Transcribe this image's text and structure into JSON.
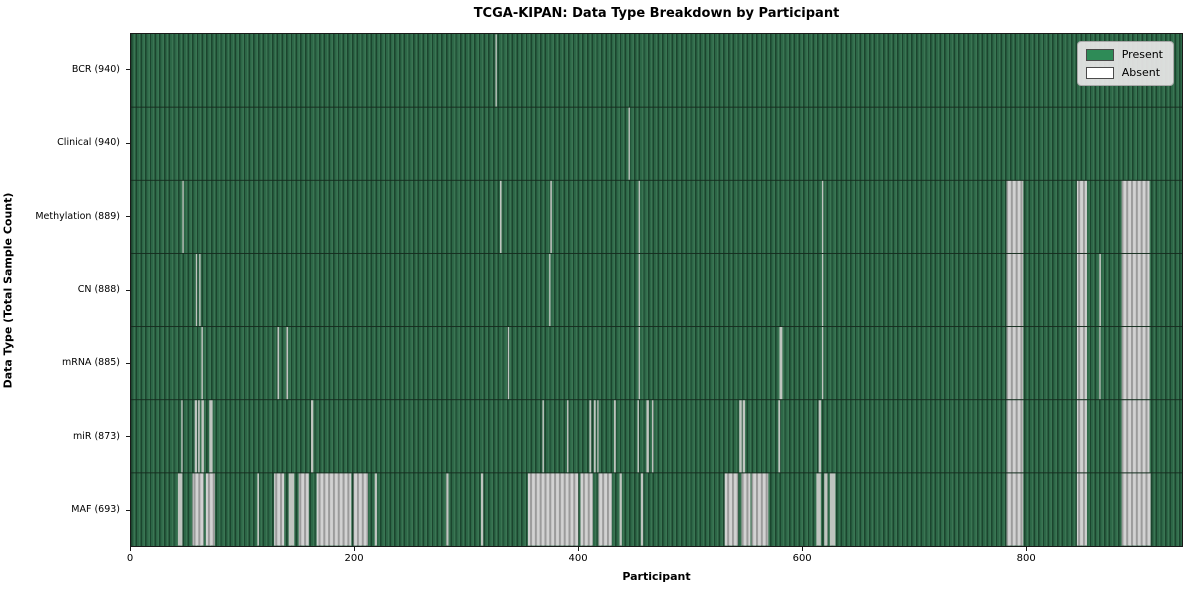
{
  "title": "TCGA-KIPAN: Data Type Breakdown by Participant",
  "axes": {
    "xlabel": "Participant",
    "ylabel": "Data Type (Total Sample Count)",
    "xticks": [
      0,
      200,
      400,
      600,
      800
    ],
    "x_range": [
      0,
      940
    ]
  },
  "legend": {
    "items": [
      {
        "label": "Present",
        "color": "#2e8b57"
      },
      {
        "label": "Absent",
        "color": "#ffffff"
      }
    ]
  },
  "colors": {
    "present": "#2e8b57",
    "present_dark": "#1b452e",
    "absent_thin": "#c0c5c0",
    "absent_block_light": "#d2d2d2",
    "absent_block_dark": "#9b9b9b",
    "row_separator": "#152a1d",
    "axis": "#1a1a1a",
    "legend_bg": "#e4e4e4"
  },
  "chart_data": {
    "type": "heatmap",
    "title": "TCGA-KIPAN: Data Type Breakdown by Participant",
    "xlabel": "Participant",
    "ylabel": "Data Type (Total Sample Count)",
    "x_range": [
      0,
      940
    ],
    "xticks": [
      0,
      200,
      400,
      600,
      800
    ],
    "legend": [
      "Present",
      "Absent"
    ],
    "cell_states": {
      "present": 1,
      "absent": 0
    },
    "rows": [
      {
        "label": "BCR (940)",
        "data_type": "BCR",
        "present_count": 940,
        "absent_ranges": [
          [
            326,
            1.2
          ]
        ]
      },
      {
        "label": "Clinical (940)",
        "data_type": "Clinical",
        "present_count": 940,
        "absent_ranges": [
          [
            445,
            1.2
          ]
        ]
      },
      {
        "label": "Methylation (889)",
        "data_type": "Methylation",
        "present_count": 889,
        "absent_ranges": [
          [
            46,
            1.2
          ],
          [
            330,
            1.4
          ],
          [
            375,
            1.4
          ],
          [
            454,
            1.2
          ],
          [
            618,
            1.2
          ],
          [
            783,
            15
          ],
          [
            846,
            9
          ],
          [
            886,
            25
          ]
        ]
      },
      {
        "label": "CN (888)",
        "data_type": "CN",
        "present_count": 888,
        "absent_ranges": [
          [
            58,
            1.2
          ],
          [
            61,
            1.2
          ],
          [
            374,
            1.2
          ],
          [
            454,
            1.2
          ],
          [
            618,
            1.2
          ],
          [
            783,
            15
          ],
          [
            846,
            9
          ],
          [
            866,
            1.5
          ],
          [
            886,
            25
          ]
        ]
      },
      {
        "label": "mRNA (885)",
        "data_type": "mRNA",
        "present_count": 885,
        "absent_ranges": [
          [
            63,
            1.3
          ],
          [
            131,
            1.5
          ],
          [
            139,
            1.5
          ],
          [
            337,
            1.2
          ],
          [
            454,
            1.2
          ],
          [
            580,
            2.6
          ],
          [
            618,
            1.2
          ],
          [
            783,
            15
          ],
          [
            846,
            9
          ],
          [
            866,
            1.2
          ],
          [
            886,
            25
          ]
        ]
      },
      {
        "label": "miR (873)",
        "data_type": "miR",
        "present_count": 873,
        "absent_ranges": [
          [
            45,
            1.2
          ],
          [
            57,
            2.2
          ],
          [
            60,
            1.5
          ],
          [
            63,
            2.2
          ],
          [
            70,
            3
          ],
          [
            161,
            2
          ],
          [
            368,
            1.3
          ],
          [
            390,
            1.3
          ],
          [
            410,
            1.6
          ],
          [
            414,
            1.6
          ],
          [
            417,
            1.2
          ],
          [
            432,
            1.6
          ],
          [
            453,
            1.3
          ],
          [
            461,
            2.2
          ],
          [
            466,
            1.3
          ],
          [
            544,
            2.2
          ],
          [
            547,
            2.2
          ],
          [
            579,
            1.6
          ],
          [
            615,
            2.2
          ],
          [
            783,
            15
          ],
          [
            846,
            9
          ],
          [
            886,
            25
          ]
        ]
      },
      {
        "label": "MAF (693)",
        "data_type": "MAF",
        "present_count": 693,
        "absent_ranges": [
          [
            42,
            4
          ],
          [
            55,
            10
          ],
          [
            67,
            8
          ],
          [
            113,
            1.5
          ],
          [
            128,
            9
          ],
          [
            141,
            5
          ],
          [
            150,
            9
          ],
          [
            166,
            31
          ],
          [
            199,
            13
          ],
          [
            218,
            2
          ],
          [
            282,
            2
          ],
          [
            313,
            2
          ],
          [
            355,
            45
          ],
          [
            402,
            11
          ],
          [
            418,
            12
          ],
          [
            437,
            2
          ],
          [
            456,
            2
          ],
          [
            531,
            12
          ],
          [
            546,
            8
          ],
          [
            555,
            15
          ],
          [
            613,
            4
          ],
          [
            620,
            3
          ],
          [
            625,
            5
          ],
          [
            783,
            15
          ],
          [
            846,
            9
          ],
          [
            886,
            26
          ]
        ]
      }
    ]
  }
}
